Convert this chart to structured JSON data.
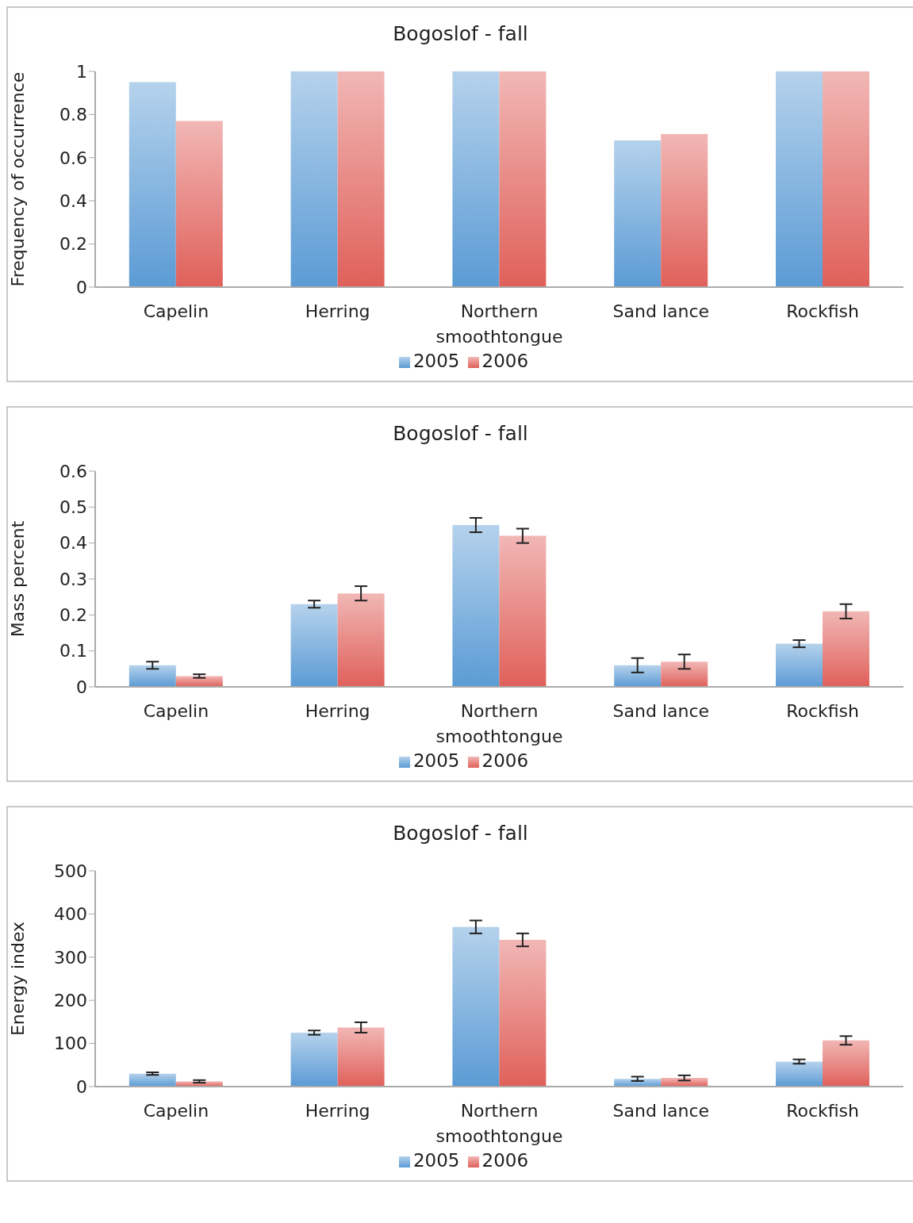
{
  "chart_data": [
    {
      "type": "bar",
      "title": "Bogoslof - fall",
      "ylabel": "Frequency of occurrence",
      "categories": [
        "Capelin",
        "Herring",
        "Northern smoothtongue",
        "Sand lance",
        "Rockfish"
      ],
      "series": [
        {
          "name": "2005",
          "color": "#5b9bd5",
          "values": [
            0.95,
            1,
            1,
            0.68,
            1
          ]
        },
        {
          "name": "2006",
          "color": "#e0605a",
          "values": [
            0.77,
            1,
            1,
            0.71,
            1
          ]
        }
      ],
      "ylim": [
        0,
        1
      ],
      "yticks": [
        0,
        0.2,
        0.4,
        0.6,
        0.8,
        1
      ],
      "grid": false,
      "legend": "bottom"
    },
    {
      "type": "bar",
      "title": "Bogoslof - fall",
      "ylabel": "Mass percent",
      "categories": [
        "Capelin",
        "Herring",
        "Northern smoothtongue",
        "Sand lance",
        "Rockfish"
      ],
      "series": [
        {
          "name": "2005",
          "color": "#5b9bd5",
          "values": [
            0.06,
            0.23,
            0.45,
            0.06,
            0.12
          ],
          "errors": [
            0.01,
            0.01,
            0.02,
            0.02,
            0.01
          ]
        },
        {
          "name": "2006",
          "color": "#e0605a",
          "values": [
            0.03,
            0.26,
            0.42,
            0.07,
            0.21
          ],
          "errors": [
            0.005,
            0.02,
            0.02,
            0.02,
            0.02
          ]
        }
      ],
      "ylim": [
        0,
        0.6
      ],
      "yticks": [
        0,
        0.1,
        0.2,
        0.3,
        0.4,
        0.5,
        0.6
      ],
      "grid": false,
      "legend": "bottom"
    },
    {
      "type": "bar",
      "title": "Bogoslof - fall",
      "ylabel": "Energy index",
      "categories": [
        "Capelin",
        "Herring",
        "Northern smoothtongue",
        "Sand lance",
        "Rockfish"
      ],
      "series": [
        {
          "name": "2005",
          "color": "#5b9bd5",
          "values": [
            30,
            125,
            370,
            18,
            58
          ],
          "errors": [
            3,
            5,
            15,
            5,
            5
          ]
        },
        {
          "name": "2006",
          "color": "#e0605a",
          "values": [
            12,
            137,
            340,
            20,
            107
          ],
          "errors": [
            3,
            12,
            15,
            6,
            10
          ]
        }
      ],
      "ylim": [
        0,
        500
      ],
      "yticks": [
        0,
        100,
        200,
        300,
        400,
        500
      ],
      "grid": false,
      "legend": "bottom"
    }
  ]
}
